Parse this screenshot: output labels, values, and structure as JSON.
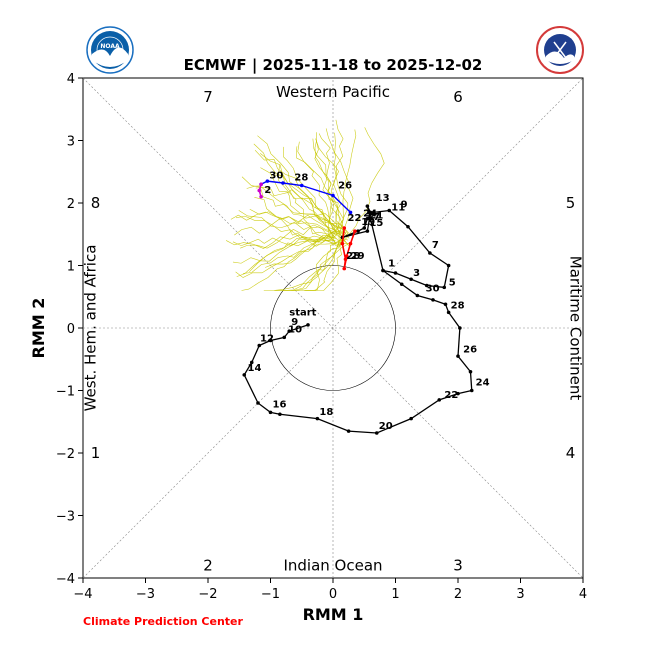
{
  "header": {
    "title": "ECMWF | 2025-11-18 to 2025-12-02"
  },
  "logos": {
    "left": {
      "name": "noaa-logo",
      "text": "NOAA",
      "color": "#0a5fa8"
    },
    "right": {
      "name": "nws-logo",
      "text": "NATIONAL WEATHER SERVICE",
      "color": "#1f3f8f"
    }
  },
  "footer": {
    "credit": "Climate Prediction Center",
    "credit_color": "#ff0000"
  },
  "chart_data": {
    "type": "line",
    "title": "ECMWF | 2025-11-18 to 2025-12-02",
    "xlabel": "RMM 1",
    "ylabel": "RMM 2",
    "xlim": [
      -4,
      4
    ],
    "ylim": [
      -4,
      4
    ],
    "xticks": [
      "−4",
      "−3",
      "−2",
      "−1",
      "0",
      "1",
      "2",
      "3",
      "4"
    ],
    "yticks": [
      "−4",
      "−3",
      "−2",
      "−1",
      "0",
      "1",
      "2",
      "3",
      "4"
    ],
    "regions": {
      "top": "Western Pacific",
      "bottom": "Indian Ocean",
      "left": "West. Hem. and Africa",
      "right": "Maritime Continent"
    },
    "phases": {
      "p1": "1",
      "p2": "2",
      "p3": "3",
      "p4": "4",
      "p5": "5",
      "p6": "6",
      "p7": "7",
      "p8": "8"
    },
    "unit_circle_radius": 1,
    "start_label": "start",
    "observed": {
      "color": "#000000",
      "points": [
        [
          0.8,
          0.92
        ],
        [
          1.0,
          0.88
        ],
        [
          1.25,
          0.78
        ],
        [
          1.5,
          0.68
        ],
        [
          1.78,
          0.65
        ],
        [
          1.85,
          1.0
        ],
        [
          1.55,
          1.2
        ],
        [
          1.2,
          1.62
        ],
        [
          0.9,
          1.88
        ],
        [
          0.65,
          1.85
        ],
        [
          0.55,
          1.75
        ],
        [
          0.5,
          1.6
        ],
        [
          0.4,
          1.55
        ],
        [
          0.15,
          1.45
        ],
        [
          0.55,
          1.55
        ],
        [
          0.6,
          1.85
        ],
        [
          0.55,
          1.95
        ],
        [
          0.8,
          0.92
        ],
        [
          1.1,
          0.7
        ],
        [
          1.35,
          0.52
        ],
        [
          1.6,
          0.45
        ],
        [
          1.8,
          0.38
        ],
        [
          1.85,
          0.25
        ],
        [
          2.03,
          0.0
        ],
        [
          2.0,
          -0.45
        ],
        [
          2.2,
          -0.7
        ],
        [
          2.22,
          -1.0
        ],
        [
          2.0,
          -1.05
        ],
        [
          1.7,
          -1.15
        ],
        [
          1.25,
          -1.45
        ],
        [
          0.7,
          -1.68
        ],
        [
          0.25,
          -1.65
        ],
        [
          -0.25,
          -1.45
        ],
        [
          -0.85,
          -1.38
        ],
        [
          -1.0,
          -1.35
        ],
        [
          -1.2,
          -1.2
        ],
        [
          -1.42,
          -0.75
        ],
        [
          -1.3,
          -0.55
        ],
        [
          -1.18,
          -0.28
        ],
        [
          -1.0,
          -0.2
        ],
        [
          -0.78,
          -0.15
        ],
        [
          -0.7,
          -0.05
        ],
        [
          -0.4,
          0.05
        ]
      ],
      "labels": [
        {
          "text": "1",
          "x": 0.85,
          "y": 0.95
        },
        {
          "text": "3",
          "x": 1.25,
          "y": 0.8
        },
        {
          "text": "30",
          "x": 1.45,
          "y": 0.55
        },
        {
          "text": "5",
          "x": 1.82,
          "y": 0.65
        },
        {
          "text": "7",
          "x": 1.55,
          "y": 1.25
        },
        {
          "text": "28",
          "x": 1.85,
          "y": 0.28
        },
        {
          "text": "26",
          "x": 2.05,
          "y": -0.42
        },
        {
          "text": "24",
          "x": 2.25,
          "y": -0.95
        },
        {
          "text": "22",
          "x": 1.75,
          "y": -1.15
        },
        {
          "text": "20",
          "x": 0.7,
          "y": -1.65
        },
        {
          "text": "18",
          "x": -0.25,
          "y": -1.42
        },
        {
          "text": "16",
          "x": -1.0,
          "y": -1.3
        },
        {
          "text": "14",
          "x": -1.4,
          "y": -0.72
        },
        {
          "text": "12",
          "x": -1.2,
          "y": -0.25
        },
        {
          "text": "10",
          "x": -0.75,
          "y": -0.1
        },
        {
          "text": "9",
          "x": -0.7,
          "y": 0.02
        },
        {
          "text": "9",
          "x": 1.05,
          "y": 1.9
        },
        {
          "text": "11",
          "x": 0.9,
          "y": 1.85
        },
        {
          "text": "13",
          "x": 0.65,
          "y": 2.0
        },
        {
          "text": "15",
          "x": 0.55,
          "y": 1.6
        },
        {
          "text": "17",
          "x": 0.5,
          "y": 1.7
        },
        {
          "text": "19",
          "x": 0.42,
          "y": 1.62
        },
        {
          "text": "21",
          "x": 0.55,
          "y": 1.72
        },
        {
          "text": "22",
          "x": 0.2,
          "y": 1.68
        },
        {
          "text": "24",
          "x": 0.45,
          "y": 1.75
        }
      ]
    },
    "forecast_red": {
      "color": "#ff0000",
      "points": [
        [
          0.35,
          1.55
        ],
        [
          0.28,
          1.35
        ],
        [
          0.22,
          1.15
        ],
        [
          0.18,
          0.95
        ],
        [
          0.2,
          1.1
        ],
        [
          0.15,
          1.35
        ],
        [
          0.18,
          1.6
        ]
      ],
      "labels": [
        {
          "text": "29",
          "x": 0.25,
          "y": 1.07
        },
        {
          "text": "28",
          "x": 0.18,
          "y": 1.07
        }
      ]
    },
    "forecast_blue": {
      "color": "#0000ff",
      "points": [
        [
          0.28,
          1.85
        ],
        [
          0.0,
          2.12
        ],
        [
          -0.5,
          2.28
        ],
        [
          -0.8,
          2.32
        ],
        [
          -1.05,
          2.35
        ],
        [
          -1.15,
          2.3
        ]
      ],
      "labels": [
        {
          "text": "26",
          "x": 0.05,
          "y": 2.2
        },
        {
          "text": "28",
          "x": -0.65,
          "y": 2.33
        },
        {
          "text": "30",
          "x": -1.05,
          "y": 2.36
        }
      ]
    },
    "forecast_magenta": {
      "color": "#cc00cc",
      "points": [
        [
          -1.15,
          2.3
        ],
        [
          -1.18,
          2.2
        ],
        [
          -1.15,
          2.1
        ]
      ],
      "labels": [
        {
          "text": "2",
          "x": -1.13,
          "y": 2.13
        }
      ]
    },
    "ensemble_color": "#c8c800",
    "ensemble_note": "ensemble member spread"
  }
}
